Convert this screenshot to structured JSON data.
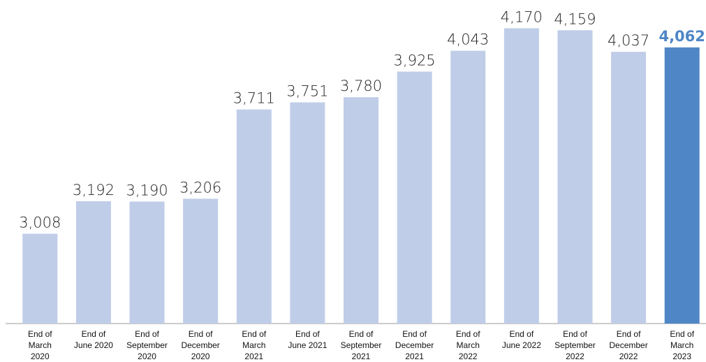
{
  "chart_data": {
    "type": "bar",
    "categories": [
      "End of\nMarch\n2020",
      "End of\nJune 2020",
      "End of\nSeptember\n2020",
      "End of\nDecember\n2020",
      "End of\nMarch\n2021",
      "End of\nJune 2021",
      "End of\nSeptember\n2021",
      "End of\nDecember\n2021",
      "End of\nMarch\n2022",
      "End of\nJune 2022",
      "End of\nSeptember\n2022",
      "End of\nDecember\n2022",
      "End of\nMarch\n2023"
    ],
    "values": [
      3008,
      3192,
      3190,
      3206,
      3711,
      3751,
      3780,
      3925,
      4043,
      4170,
      4159,
      4037,
      4062
    ],
    "value_labels": [
      "3,008",
      "3,192",
      "3,190",
      "3,206",
      "3,711",
      "3,751",
      "3,780",
      "3,925",
      "4,043",
      "4,170",
      "4,159",
      "4,037",
      "4,062"
    ],
    "color": "#bfcde8",
    "colors": [
      "#bfcde8",
      "#bfcde8",
      "#bfcde8",
      "#bfcde8",
      "#bfcde8",
      "#bfcde8",
      "#bfcde8",
      "#bfcde8",
      "#bfcde8",
      "#bfcde8",
      "#bfcde8",
      "#bfcde8",
      "#4f86c6"
    ],
    "ylim": [
      2500,
      4330
    ]
  }
}
